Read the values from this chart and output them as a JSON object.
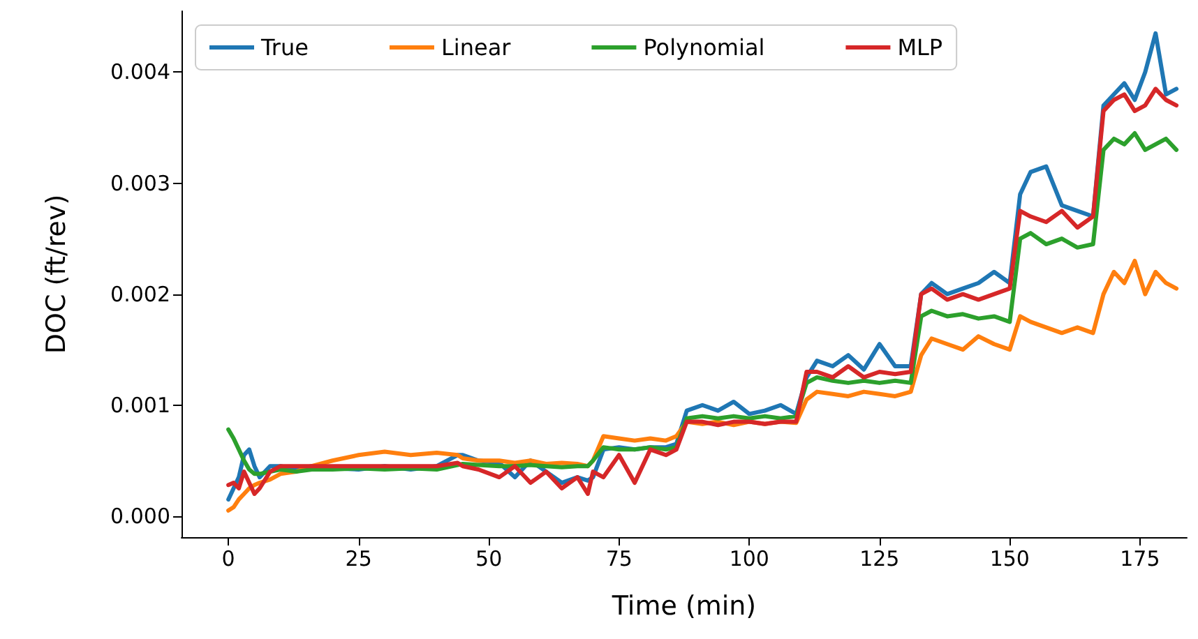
{
  "chart_data": {
    "type": "line",
    "xlabel": "Time (min)",
    "ylabel": "DOC (ft/rev)",
    "x": [
      0,
      1,
      2,
      3,
      4,
      5,
      6,
      8,
      10,
      13,
      16,
      20,
      25,
      30,
      35,
      40,
      44,
      45,
      48,
      52,
      55,
      58,
      61,
      64,
      67,
      69,
      70,
      72,
      75,
      78,
      81,
      84,
      86,
      88,
      91,
      94,
      97,
      100,
      103,
      106,
      109,
      111,
      113,
      116,
      119,
      122,
      125,
      128,
      131,
      133,
      135,
      138,
      141,
      144,
      147,
      150,
      152,
      154,
      157,
      160,
      163,
      166,
      168,
      170,
      172,
      174,
      176,
      178,
      180,
      182
    ],
    "series": [
      {
        "name": "True",
        "color": "#1f77b4",
        "values": [
          0.00015,
          0.00025,
          0.00035,
          0.00055,
          0.0006,
          0.00045,
          0.00035,
          0.00045,
          0.00045,
          0.00042,
          0.00045,
          0.00043,
          0.00042,
          0.00045,
          0.00042,
          0.00045,
          0.00055,
          0.00055,
          0.0005,
          0.00048,
          0.00035,
          0.0005,
          0.0004,
          0.0003,
          0.00035,
          0.00032,
          0.00035,
          0.0006,
          0.00062,
          0.0006,
          0.00062,
          0.00062,
          0.00065,
          0.00095,
          0.001,
          0.00095,
          0.00103,
          0.00092,
          0.00095,
          0.001,
          0.00092,
          0.00125,
          0.0014,
          0.00135,
          0.00145,
          0.00132,
          0.00155,
          0.00135,
          0.00135,
          0.002,
          0.0021,
          0.002,
          0.00205,
          0.0021,
          0.0022,
          0.0021,
          0.0029,
          0.0031,
          0.00315,
          0.0028,
          0.00275,
          0.0027,
          0.0037,
          0.0038,
          0.0039,
          0.00375,
          0.004,
          0.00435,
          0.0038,
          0.00385
        ]
      },
      {
        "name": "Linear",
        "color": "#ff7f0e",
        "values": [
          5e-05,
          8e-05,
          0.00015,
          0.0002,
          0.00025,
          0.00028,
          0.0003,
          0.00033,
          0.00038,
          0.0004,
          0.00045,
          0.0005,
          0.00055,
          0.00058,
          0.00055,
          0.00057,
          0.00055,
          0.00052,
          0.0005,
          0.0005,
          0.00048,
          0.0005,
          0.00047,
          0.00048,
          0.00047,
          0.00045,
          0.0005,
          0.00072,
          0.0007,
          0.00068,
          0.0007,
          0.00068,
          0.00072,
          0.00085,
          0.00083,
          0.00085,
          0.00082,
          0.00085,
          0.00083,
          0.00085,
          0.00084,
          0.00105,
          0.00112,
          0.0011,
          0.00108,
          0.00112,
          0.0011,
          0.00108,
          0.00112,
          0.00145,
          0.0016,
          0.00155,
          0.0015,
          0.00162,
          0.00155,
          0.0015,
          0.0018,
          0.00175,
          0.0017,
          0.00165,
          0.0017,
          0.00165,
          0.002,
          0.0022,
          0.0021,
          0.0023,
          0.002,
          0.0022,
          0.0021,
          0.00205
        ]
      },
      {
        "name": "Polynomial",
        "color": "#2ca02c",
        "values": [
          0.00078,
          0.0007,
          0.0006,
          0.0005,
          0.00042,
          0.00038,
          0.00038,
          0.0004,
          0.00042,
          0.0004,
          0.00042,
          0.00042,
          0.00043,
          0.00042,
          0.00043,
          0.00042,
          0.00046,
          0.00047,
          0.00046,
          0.00045,
          0.00045,
          0.00046,
          0.00045,
          0.00044,
          0.00045,
          0.00045,
          0.0005,
          0.00062,
          0.0006,
          0.0006,
          0.00062,
          0.0006,
          0.00062,
          0.00088,
          0.0009,
          0.00088,
          0.0009,
          0.00088,
          0.0009,
          0.00088,
          0.0009,
          0.0012,
          0.00125,
          0.00122,
          0.0012,
          0.00122,
          0.0012,
          0.00122,
          0.0012,
          0.0018,
          0.00185,
          0.0018,
          0.00182,
          0.00178,
          0.0018,
          0.00175,
          0.0025,
          0.00255,
          0.00245,
          0.0025,
          0.00242,
          0.00245,
          0.0033,
          0.0034,
          0.00335,
          0.00345,
          0.0033,
          0.00335,
          0.0034,
          0.0033
        ]
      },
      {
        "name": "MLP",
        "color": "#d62728",
        "values": [
          0.00028,
          0.0003,
          0.00025,
          0.0004,
          0.0003,
          0.0002,
          0.00025,
          0.0004,
          0.00045,
          0.00045,
          0.00045,
          0.00045,
          0.00045,
          0.00045,
          0.00045,
          0.00045,
          0.00048,
          0.00045,
          0.00042,
          0.00035,
          0.00045,
          0.0003,
          0.0004,
          0.00025,
          0.00035,
          0.0002,
          0.0004,
          0.00035,
          0.00055,
          0.0003,
          0.0006,
          0.00055,
          0.0006,
          0.00085,
          0.00085,
          0.00082,
          0.00085,
          0.00085,
          0.00083,
          0.00085,
          0.00085,
          0.0013,
          0.0013,
          0.00125,
          0.00135,
          0.00125,
          0.0013,
          0.00128,
          0.0013,
          0.002,
          0.00205,
          0.00195,
          0.002,
          0.00195,
          0.002,
          0.00205,
          0.00275,
          0.0027,
          0.00265,
          0.00275,
          0.0026,
          0.0027,
          0.00365,
          0.00375,
          0.0038,
          0.00365,
          0.0037,
          0.00385,
          0.00375,
          0.0037
        ]
      }
    ],
    "xlim": [
      -9,
      184
    ],
    "xticks": [
      0,
      25,
      50,
      75,
      100,
      125,
      150,
      175
    ],
    "ylim": [
      -0.00019,
      0.00455
    ],
    "yticks": [
      {
        "value": 0,
        "label": "0.000"
      },
      {
        "value": 0.001,
        "label": "0.001"
      },
      {
        "value": 0.002,
        "label": "0.002"
      },
      {
        "value": 0.003,
        "label": "0.003"
      },
      {
        "value": 0.004,
        "label": "0.004"
      }
    ],
    "legend": "top",
    "grid": false,
    "line_style": "solid",
    "marker": "none"
  }
}
